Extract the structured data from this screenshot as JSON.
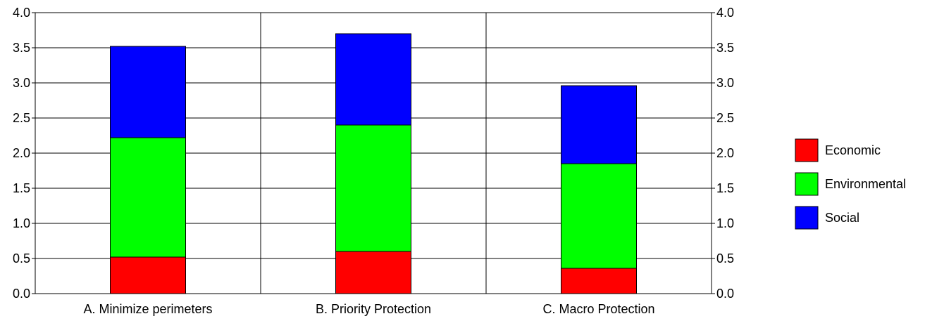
{
  "chart_data": {
    "type": "bar",
    "stacked": true,
    "categories": [
      "A. Minimize perimeters",
      "B. Priority Protection",
      "C. Macro Protection"
    ],
    "series": [
      {
        "name": "Economic",
        "color": "#ff0000",
        "values": [
          0.52,
          0.6,
          0.36
        ]
      },
      {
        "name": "Environmental",
        "color": "#00ff00",
        "values": [
          1.7,
          1.8,
          1.49
        ]
      },
      {
        "name": "Social",
        "color": "#0000ff",
        "values": [
          1.3,
          1.3,
          1.11
        ]
      }
    ],
    "ylim": [
      0,
      4.0
    ],
    "yticks": [
      "0.0",
      "0.5",
      "1.0",
      "1.5",
      "2.0",
      "2.5",
      "3.0",
      "3.5",
      "4.0"
    ],
    "y_axis_both_sides": true,
    "grid": {
      "horizontal": true,
      "category_dividers": true
    },
    "legend": {
      "position": "right",
      "entries": [
        "Economic",
        "Environmental",
        "Social"
      ]
    }
  }
}
